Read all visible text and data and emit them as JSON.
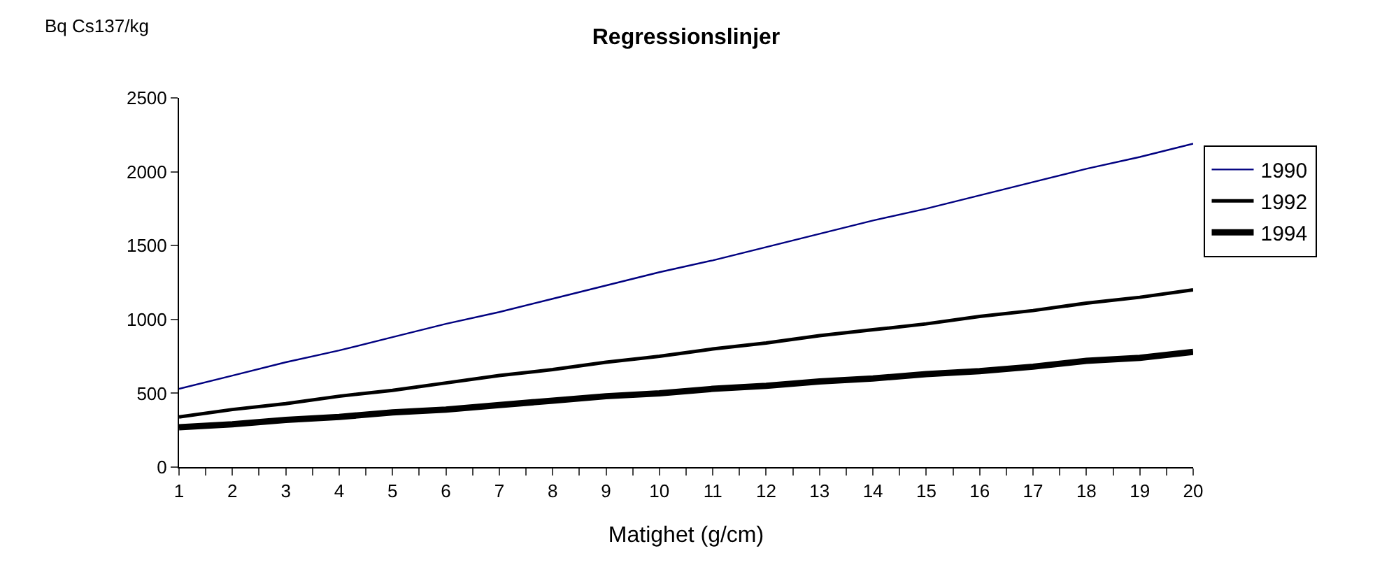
{
  "chart_data": {
    "type": "line",
    "title": "Regressionslinjer",
    "xlabel": "Matighet (g/cm)",
    "ylabel": "Bq Cs137/kg",
    "x": [
      1,
      2,
      3,
      4,
      5,
      6,
      7,
      8,
      9,
      10,
      11,
      12,
      13,
      14,
      15,
      16,
      17,
      18,
      19,
      20
    ],
    "series": [
      {
        "name": "1990",
        "color": "#000080",
        "values": [
          530,
          620,
          710,
          790,
          880,
          970,
          1050,
          1140,
          1230,
          1320,
          1400,
          1490,
          1580,
          1670,
          1750,
          1840,
          1930,
          2020,
          2100,
          2190
        ]
      },
      {
        "name": "1992",
        "color": "#000000",
        "values": [
          340,
          390,
          430,
          480,
          520,
          570,
          620,
          660,
          710,
          750,
          800,
          840,
          890,
          930,
          970,
          1020,
          1060,
          1110,
          1150,
          1200
        ]
      },
      {
        "name": "1994",
        "color": "#000000",
        "values": [
          270,
          290,
          320,
          340,
          370,
          390,
          420,
          450,
          480,
          500,
          530,
          550,
          580,
          600,
          630,
          650,
          680,
          720,
          740,
          780
        ]
      }
    ],
    "xlim": [
      1,
      20
    ],
    "xticks": [
      1,
      2,
      3,
      4,
      5,
      6,
      7,
      8,
      9,
      10,
      11,
      12,
      13,
      14,
      15,
      16,
      17,
      18,
      19,
      20
    ],
    "ylim": [
      0,
      2500
    ],
    "yticks": [
      0,
      500,
      1000,
      1500,
      2000,
      2500
    ],
    "grid": false,
    "legend": "right",
    "marker": "none",
    "line_style": "solid"
  }
}
